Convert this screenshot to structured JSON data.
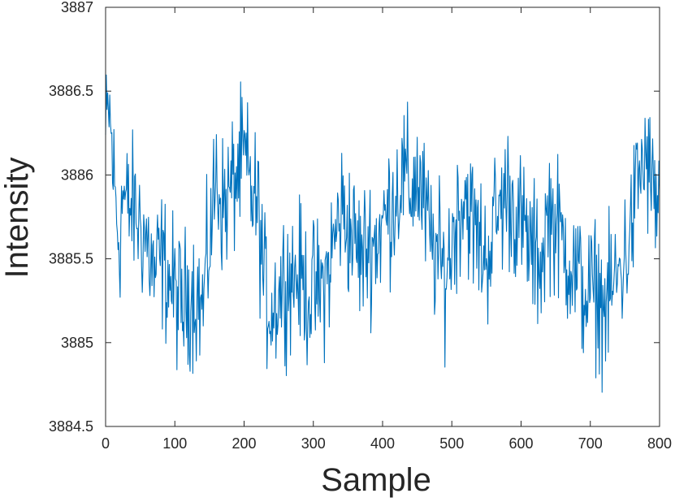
{
  "chart_data": {
    "type": "line",
    "title": "",
    "xlabel": "Sample",
    "ylabel": "Intensity",
    "xlim": [
      0,
      800
    ],
    "ylim": [
      3884.5,
      3887
    ],
    "xticks": [
      0,
      100,
      200,
      300,
      400,
      500,
      600,
      700,
      800
    ],
    "xtick_labels": [
      "0",
      "100",
      "200",
      "300",
      "400",
      "500",
      "600",
      "700",
      "800"
    ],
    "yticks": [
      3884.5,
      3885,
      3885.5,
      3886,
      3886.5,
      3887
    ],
    "ytick_labels": [
      "3884.5",
      "3885",
      "3885.5",
      "3886",
      "3886.5",
      "3887"
    ],
    "grid": false,
    "line_color": "#0072BD",
    "series": [
      {
        "x": [
          0,
          5,
          10,
          15,
          20,
          25,
          30,
          40,
          50,
          60,
          70,
          80,
          90,
          100,
          110,
          120,
          130,
          140,
          150,
          160,
          170,
          180,
          190,
          200,
          210,
          220,
          230,
          240,
          250,
          260,
          270,
          280,
          290,
          300,
          310,
          320,
          330,
          340,
          350,
          360,
          370,
          380,
          390,
          400,
          410,
          420,
          430,
          440,
          450,
          460,
          470,
          480,
          490,
          500,
          510,
          520,
          530,
          540,
          550,
          560,
          570,
          580,
          590,
          600,
          610,
          620,
          630,
          640,
          650,
          660,
          670,
          680,
          690,
          700,
          710,
          720,
          730,
          740,
          750,
          760,
          770,
          780,
          790,
          800
        ],
        "y": [
          3886.2,
          3886.4,
          3886.1,
          3885.8,
          3885.6,
          3885.9,
          3885.8,
          3885.8,
          3885.7,
          3885.6,
          3885.4,
          3885.5,
          3885.4,
          3885.3,
          3885.2,
          3885.3,
          3885.3,
          3885.2,
          3885.6,
          3886.0,
          3885.8,
          3885.9,
          3886.0,
          3886.1,
          3885.9,
          3885.8,
          3885.3,
          3885.2,
          3885.3,
          3885.4,
          3885.4,
          3885.4,
          3885.3,
          3885.3,
          3885.3,
          3885.4,
          3885.6,
          3885.8,
          3885.7,
          3885.6,
          3885.5,
          3885.6,
          3885.6,
          3885.7,
          3885.8,
          3885.9,
          3886.0,
          3885.9,
          3886.0,
          3885.8,
          3885.6,
          3885.5,
          3885.4,
          3885.6,
          3885.8,
          3885.9,
          3885.7,
          3885.6,
          3885.5,
          3885.7,
          3885.8,
          3885.9,
          3885.8,
          3885.7,
          3885.6,
          3885.5,
          3885.5,
          3885.8,
          3885.7,
          3885.6,
          3885.5,
          3885.4,
          3885.3,
          3885.3,
          3885.3,
          3885.2,
          3885.3,
          3885.4,
          3885.5,
          3885.7,
          3886.0,
          3886.1,
          3885.9,
          3885.8
        ]
      }
    ]
  }
}
